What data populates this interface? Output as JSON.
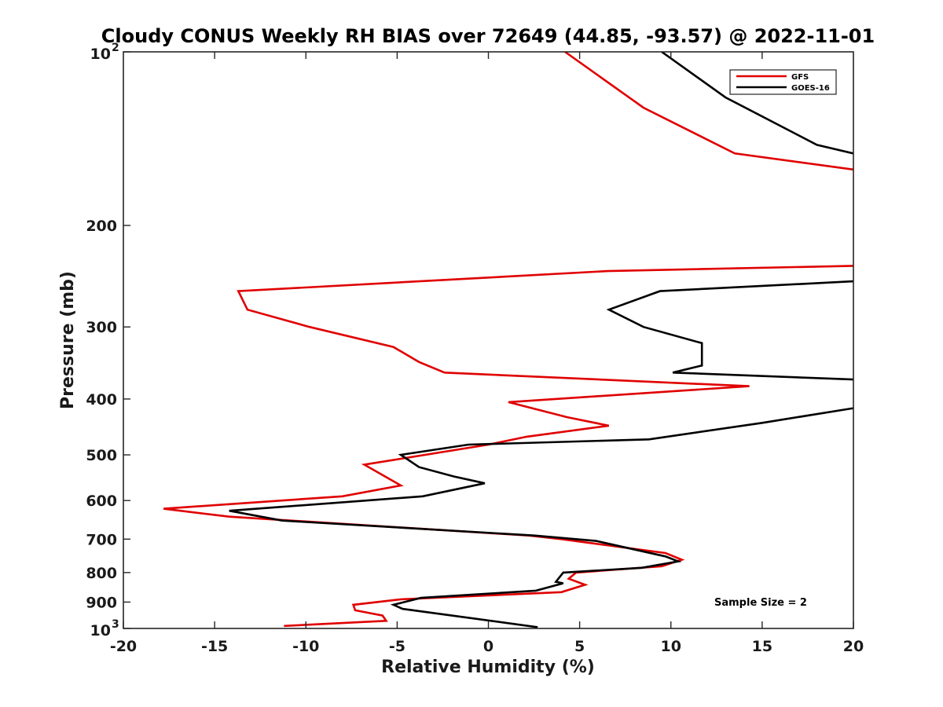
{
  "chart_data": {
    "type": "line",
    "title": "Cloudy CONUS Weekly RH BIAS over 72649 (44.85, -93.57) @ 2022-11-01",
    "xlabel": "Relative Humidity (%)",
    "ylabel": "Pressure (mb)",
    "xlim": [
      -20,
      20
    ],
    "ylim": [
      100,
      1000
    ],
    "y_scale": "log",
    "y_reversed": true,
    "grid": false,
    "legend_position": "top-right",
    "annotation": "Sample Size = 2",
    "x_ticks": [
      -20,
      -15,
      -10,
      -5,
      0,
      5,
      10,
      15,
      20
    ],
    "y_ticks": [
      {
        "value": 100,
        "base": "10",
        "exp": "2"
      },
      {
        "value": 200,
        "label": "200"
      },
      {
        "value": 300,
        "label": "300"
      },
      {
        "value": 400,
        "label": "400"
      },
      {
        "value": 500,
        "label": "500"
      },
      {
        "value": 600,
        "label": "600"
      },
      {
        "value": 700,
        "label": "700"
      },
      {
        "value": 800,
        "label": "800"
      },
      {
        "value": 900,
        "label": "900"
      },
      {
        "value": 1000,
        "base": "10",
        "exp": "3"
      }
    ],
    "series": [
      {
        "name": "GFS",
        "color": "#e00000",
        "points": [
          [
            4.2,
            100
          ],
          [
            8.5,
            125
          ],
          [
            13.5,
            150
          ],
          [
            20,
            160
          ],
          null,
          [
            20,
            235
          ],
          [
            6.5,
            240
          ],
          [
            -13.7,
            260
          ],
          [
            -13.2,
            280
          ],
          [
            -9.8,
            300
          ],
          [
            -5.2,
            325
          ],
          [
            -3.8,
            345
          ],
          [
            -2.4,
            360
          ],
          [
            14.3,
            380
          ],
          [
            1.1,
            405
          ],
          [
            4.3,
            430
          ],
          [
            6.6,
            445
          ],
          [
            2.1,
            465
          ],
          [
            0,
            480
          ],
          [
            -6.8,
            520
          ],
          [
            -4.8,
            565
          ],
          [
            -8,
            590
          ],
          [
            -17.8,
            620
          ],
          [
            -14.2,
            640
          ],
          [
            2.2,
            690
          ],
          [
            4,
            700
          ],
          [
            9.7,
            740
          ],
          [
            10.6,
            760
          ],
          [
            9.5,
            780
          ],
          [
            4.8,
            800
          ],
          [
            4.4,
            820
          ],
          [
            5.3,
            840
          ],
          [
            4.0,
            865
          ],
          [
            -4.8,
            890
          ],
          [
            -7.4,
            910
          ],
          [
            -7.3,
            930
          ],
          [
            -5.8,
            950
          ],
          [
            -5.6,
            970
          ],
          [
            -11.2,
            990
          ]
        ]
      },
      {
        "name": "GOES-16",
        "color": "#000000",
        "points": [
          [
            9.5,
            100
          ],
          [
            13,
            120
          ],
          [
            18,
            145
          ],
          [
            20,
            150
          ],
          null,
          [
            20,
            250
          ],
          [
            9.4,
            260
          ],
          [
            6.6,
            280
          ],
          [
            8.5,
            300
          ],
          [
            11.7,
            320
          ],
          [
            11.7,
            350
          ],
          [
            10.1,
            360
          ],
          [
            20,
            370
          ],
          null,
          [
            20,
            415
          ],
          [
            15,
            440
          ],
          [
            8.8,
            470
          ],
          [
            -1.1,
            480
          ],
          [
            -4.8,
            500
          ],
          [
            -3.8,
            525
          ],
          [
            -1.9,
            545
          ],
          [
            -0.2,
            560
          ],
          [
            -3.6,
            590
          ],
          [
            -14.2,
            625
          ],
          [
            -11.3,
            650
          ],
          [
            2.5,
            690
          ],
          [
            5.9,
            705
          ],
          [
            9.7,
            750
          ],
          [
            10.4,
            765
          ],
          [
            8.4,
            785
          ],
          [
            4.1,
            800
          ],
          [
            3.7,
            830
          ],
          [
            4.1,
            835
          ],
          [
            2.6,
            860
          ],
          [
            -3.7,
            885
          ],
          [
            -5.2,
            910
          ],
          [
            -4.7,
            925
          ],
          [
            2.7,
            995
          ]
        ]
      }
    ]
  }
}
